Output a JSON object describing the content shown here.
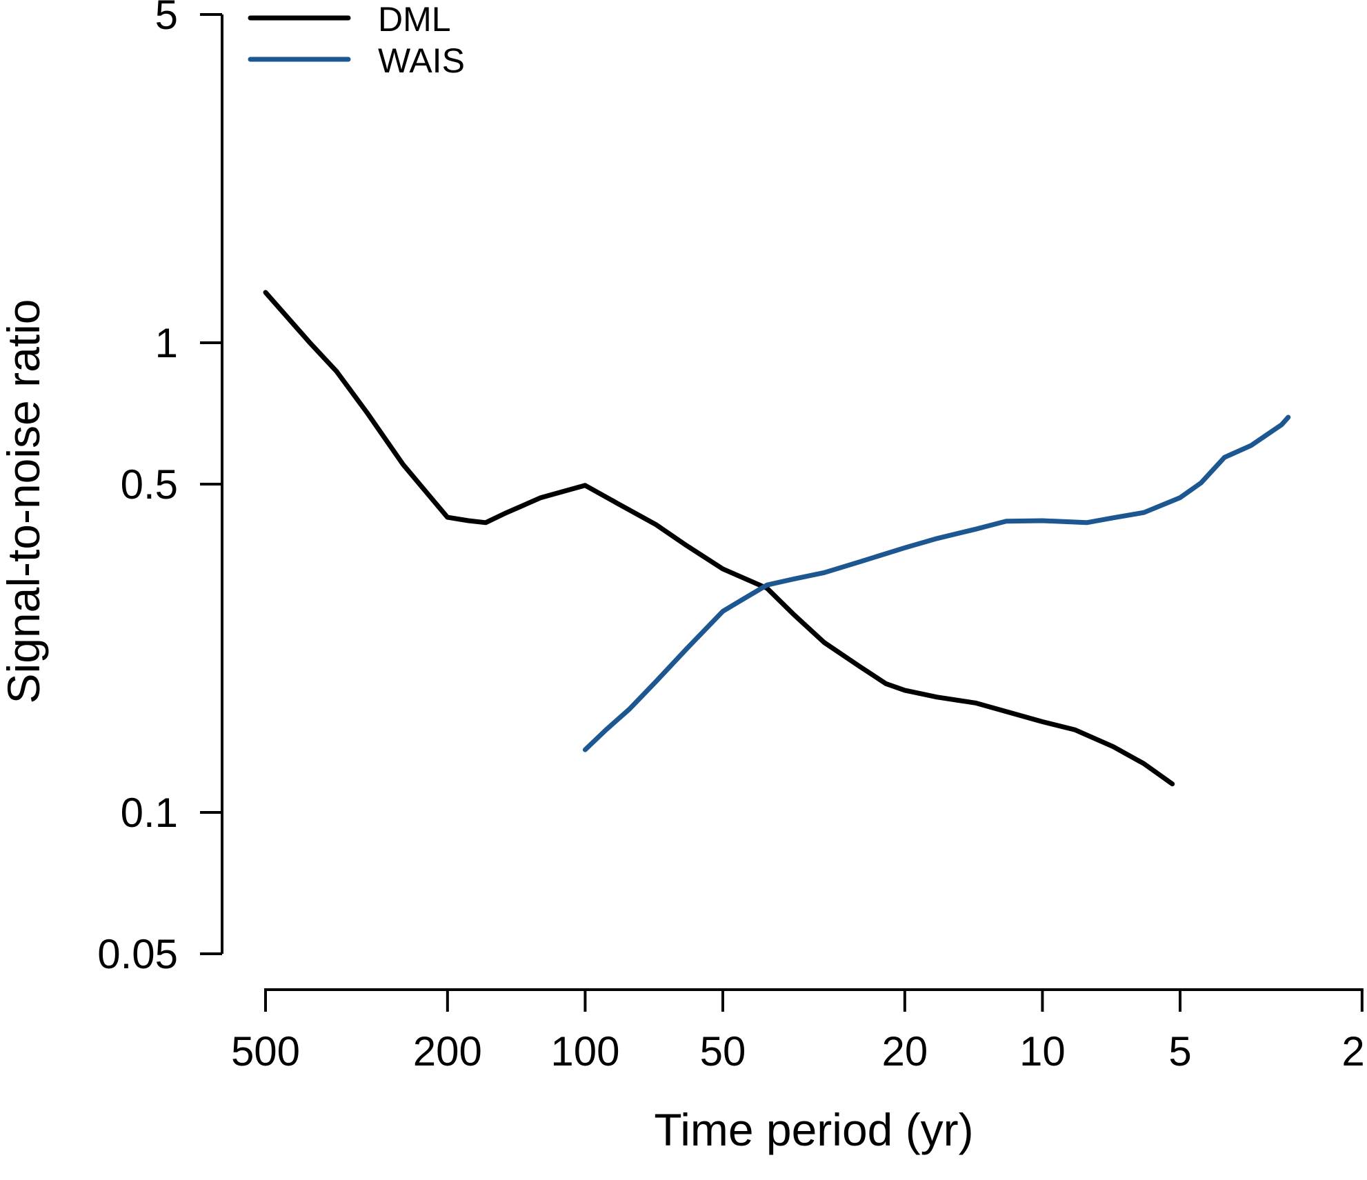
{
  "chart_data": {
    "type": "line",
    "title": "",
    "xlabel": "Time period (yr)",
    "ylabel": "Signal-to-noise ratio",
    "x_scale": "log10-reversed",
    "y_scale": "log10",
    "x_range": [
      500,
      2
    ],
    "y_range": [
      0.05,
      5
    ],
    "grid": false,
    "x_ticks": [
      {
        "value": 500,
        "label": "500"
      },
      {
        "value": 200,
        "label": "200"
      },
      {
        "value": 100,
        "label": "100"
      },
      {
        "value": 50,
        "label": "50"
      },
      {
        "value": 20,
        "label": "20"
      },
      {
        "value": 10,
        "label": "10"
      },
      {
        "value": 5,
        "label": "5"
      },
      {
        "value": 2,
        "label": "2"
      }
    ],
    "y_ticks": [
      {
        "value": 5,
        "label": "5"
      },
      {
        "value": 1,
        "label": "1"
      },
      {
        "value": 0.5,
        "label": "0.5"
      },
      {
        "value": 0.1,
        "label": "0.1"
      },
      {
        "value": 0.05,
        "label": "0.05"
      }
    ],
    "legend": {
      "position": "top-left",
      "items": [
        "DML",
        "WAIS"
      ]
    },
    "series": [
      {
        "name": "DML",
        "color": "#000000",
        "points": [
          [
            500,
            1.28
          ],
          [
            400,
            1.0
          ],
          [
            350,
            0.87
          ],
          [
            300,
            0.71
          ],
          [
            250,
            0.55
          ],
          [
            200,
            0.425
          ],
          [
            180,
            0.418
          ],
          [
            165,
            0.414
          ],
          [
            150,
            0.433
          ],
          [
            125,
            0.468
          ],
          [
            100,
            0.497
          ],
          [
            85,
            0.455
          ],
          [
            70,
            0.41
          ],
          [
            60,
            0.37
          ],
          [
            50,
            0.33
          ],
          [
            40,
            0.3
          ],
          [
            35,
            0.264
          ],
          [
            30,
            0.23
          ],
          [
            25,
            0.204
          ],
          [
            22,
            0.188
          ],
          [
            20,
            0.182
          ],
          [
            17,
            0.176
          ],
          [
            14,
            0.171
          ],
          [
            12,
            0.164
          ],
          [
            10,
            0.156
          ],
          [
            8.5,
            0.15
          ],
          [
            7,
            0.138
          ],
          [
            6,
            0.127
          ],
          [
            5.2,
            0.115
          ]
        ]
      },
      {
        "name": "WAIS",
        "color": "#1d5792",
        "points": [
          [
            100,
            0.136
          ],
          [
            90,
            0.15
          ],
          [
            80,
            0.166
          ],
          [
            70,
            0.19
          ],
          [
            60,
            0.223
          ],
          [
            50,
            0.268
          ],
          [
            45,
            0.285
          ],
          [
            40,
            0.305
          ],
          [
            35,
            0.314
          ],
          [
            30,
            0.324
          ],
          [
            25,
            0.342
          ],
          [
            20,
            0.366
          ],
          [
            17,
            0.383
          ],
          [
            14,
            0.401
          ],
          [
            12,
            0.417
          ],
          [
            10,
            0.418
          ],
          [
            8,
            0.414
          ],
          [
            7,
            0.424
          ],
          [
            6,
            0.435
          ],
          [
            5,
            0.468
          ],
          [
            4.5,
            0.503
          ],
          [
            4,
            0.57
          ],
          [
            3.5,
            0.604
          ],
          [
            3,
            0.669
          ],
          [
            2.9,
            0.694
          ]
        ]
      }
    ]
  }
}
